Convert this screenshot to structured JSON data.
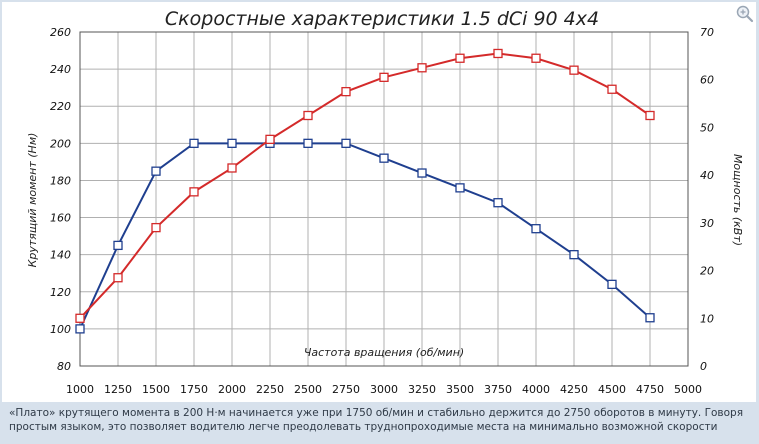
{
  "caption": "«Плато» крутящего момента в 200 Н·м начинается уже при 1750 об/мин и стабильно держится до 2750 оборотов в минуту. Говоря простым языком, это позволяет водителю легче преодолевать труднопроходимые места на минимально возможной скорости",
  "zoom_icon": "magnifier-plus-icon",
  "chart_data": {
    "type": "line",
    "title": "Скоростные характеристики  1.5 dCi 90 4x4",
    "xlabel": "Частота вращения (об/мин)",
    "ylabel": "Крутящий момент (Нм)",
    "y2label": "Мощность (кВт)",
    "xlim": [
      1000,
      5000
    ],
    "ylim": [
      80,
      260
    ],
    "y2lim": [
      0,
      70
    ],
    "x_ticks": [
      1000,
      1250,
      1500,
      1750,
      2000,
      2250,
      2500,
      2750,
      3000,
      3250,
      3500,
      3750,
      4000,
      4250,
      4500,
      4750,
      5000
    ],
    "y_ticks": [
      80,
      100,
      120,
      140,
      160,
      180,
      200,
      220,
      240,
      260
    ],
    "y2_ticks": [
      0,
      10,
      20,
      30,
      40,
      50,
      60,
      70
    ],
    "grid": true,
    "legend": "none",
    "colors": {
      "torque": "#1f3f8f",
      "power": "#d42a2a",
      "grid": "#b0b0b0",
      "background": "#ffffff"
    },
    "series": [
      {
        "axis": "left",
        "color": "#1f3f8f",
        "x": [
          1000,
          1250,
          1500,
          1750,
          2000,
          2250,
          2500,
          2750,
          3000,
          3250,
          3500,
          3750,
          4000,
          4250,
          4500,
          4750
        ],
        "values": [
          100,
          145,
          185,
          200,
          200,
          200,
          200,
          200,
          192,
          184,
          176,
          168,
          154,
          140,
          124,
          106
        ]
      },
      {
        "axis": "right",
        "color": "#d42a2a",
        "x": [
          1000,
          1250,
          1500,
          1750,
          2000,
          2250,
          2500,
          2750,
          3000,
          3250,
          3500,
          3750,
          4000,
          4250,
          4500,
          4750
        ],
        "values": [
          10,
          18.5,
          29,
          36.5,
          41.5,
          47.5,
          52.5,
          57.5,
          60.5,
          62.5,
          64.5,
          65.5,
          64.5,
          62,
          58,
          52.5
        ]
      }
    ]
  }
}
